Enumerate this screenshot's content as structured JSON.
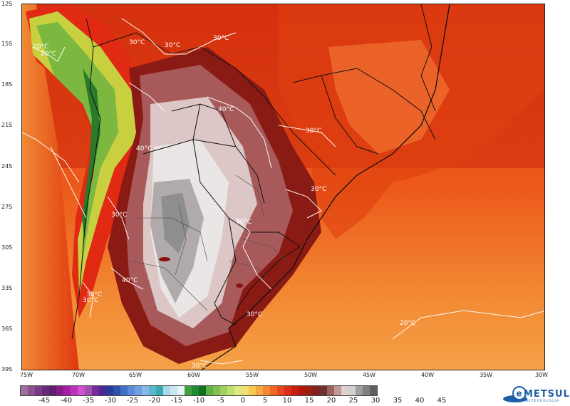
{
  "map": {
    "lat_labels": [
      "12S",
      "15S",
      "18S",
      "21S",
      "24S",
      "27S",
      "30S",
      "33S",
      "36S",
      "39S"
    ],
    "lon_labels": [
      "75W",
      "70W",
      "65W",
      "60W",
      "55W",
      "50W",
      "45W",
      "40W",
      "35W",
      "30W"
    ],
    "contour_labels": [
      "30°C",
      "30°C",
      "20°C",
      "40°C",
      "30°C",
      "40°C",
      "30°C",
      "30°C",
      "40°C",
      "30°C",
      "40°C",
      "30°C",
      "30°C",
      "20°C",
      "20°C",
      "30°C",
      "30°C"
    ]
  },
  "colorbar": {
    "colors": [
      "#9b6fa0",
      "#8a5090",
      "#7a3a85",
      "#6a2a7a",
      "#5c1e6e",
      "#8a1a8a",
      "#a320a3",
      "#c030c0",
      "#d050d0",
      "#a050b0",
      "#7a2aa0",
      "#4a2a90",
      "#2a3a9a",
      "#3050b0",
      "#4070c8",
      "#5a8ad8",
      "#70a0e0",
      "#88b8e8",
      "#5ab8c8",
      "#3aa8b0",
      "#a8d8e8",
      "#c8e8f0",
      "#e8f4f8",
      "#40a040",
      "#208a30",
      "#107020",
      "#60b040",
      "#80c050",
      "#a0d060",
      "#c0e070",
      "#e0e880",
      "#f0e070",
      "#f8c850",
      "#f8a840",
      "#f88830",
      "#f06828",
      "#e84820",
      "#d83018",
      "#c82010",
      "#b01810",
      "#982010",
      "#802020",
      "#703030",
      "#a06060",
      "#c09898",
      "#e0d0d0",
      "#d0d0d0",
      "#a0a0a0",
      "#808080",
      "#606060"
    ],
    "ticks": [
      "-45",
      "-40",
      "-35",
      "-30",
      "-25",
      "-20",
      "-15",
      "-10",
      "-5",
      "0",
      "5",
      "10",
      "15",
      "20",
      "25",
      "30",
      "35",
      "40",
      "45"
    ]
  },
  "logo": {
    "name": "METSUL",
    "subtitle": "METEOROLOGIA",
    "glyph": "e"
  }
}
